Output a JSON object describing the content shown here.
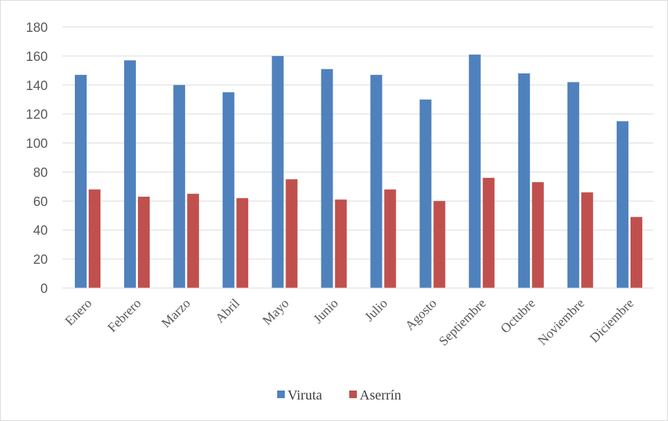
{
  "chart_data": {
    "type": "bar",
    "categories": [
      "Enero",
      "Febrero",
      "Marzo",
      "Abril",
      "Mayo",
      "Junio",
      "Julio",
      "Agosto",
      "Septiembre",
      "Octubre",
      "Noviembre",
      "Diciembre"
    ],
    "series": [
      {
        "name": "Viruta",
        "color": "#4f81bd",
        "values": [
          147,
          157,
          140,
          135,
          160,
          151,
          147,
          130,
          161,
          148,
          142,
          115
        ]
      },
      {
        "name": "Aserrín",
        "color": "#c0504d",
        "values": [
          68,
          63,
          65,
          62,
          75,
          61,
          68,
          60,
          76,
          73,
          66,
          49
        ]
      }
    ],
    "title": "",
    "xlabel": "",
    "ylabel": "",
    "ylim": [
      0,
      180
    ],
    "yticks": [
      0,
      20,
      40,
      60,
      80,
      100,
      120,
      140,
      160,
      180
    ],
    "grid": true,
    "legend_position": "bottom"
  }
}
